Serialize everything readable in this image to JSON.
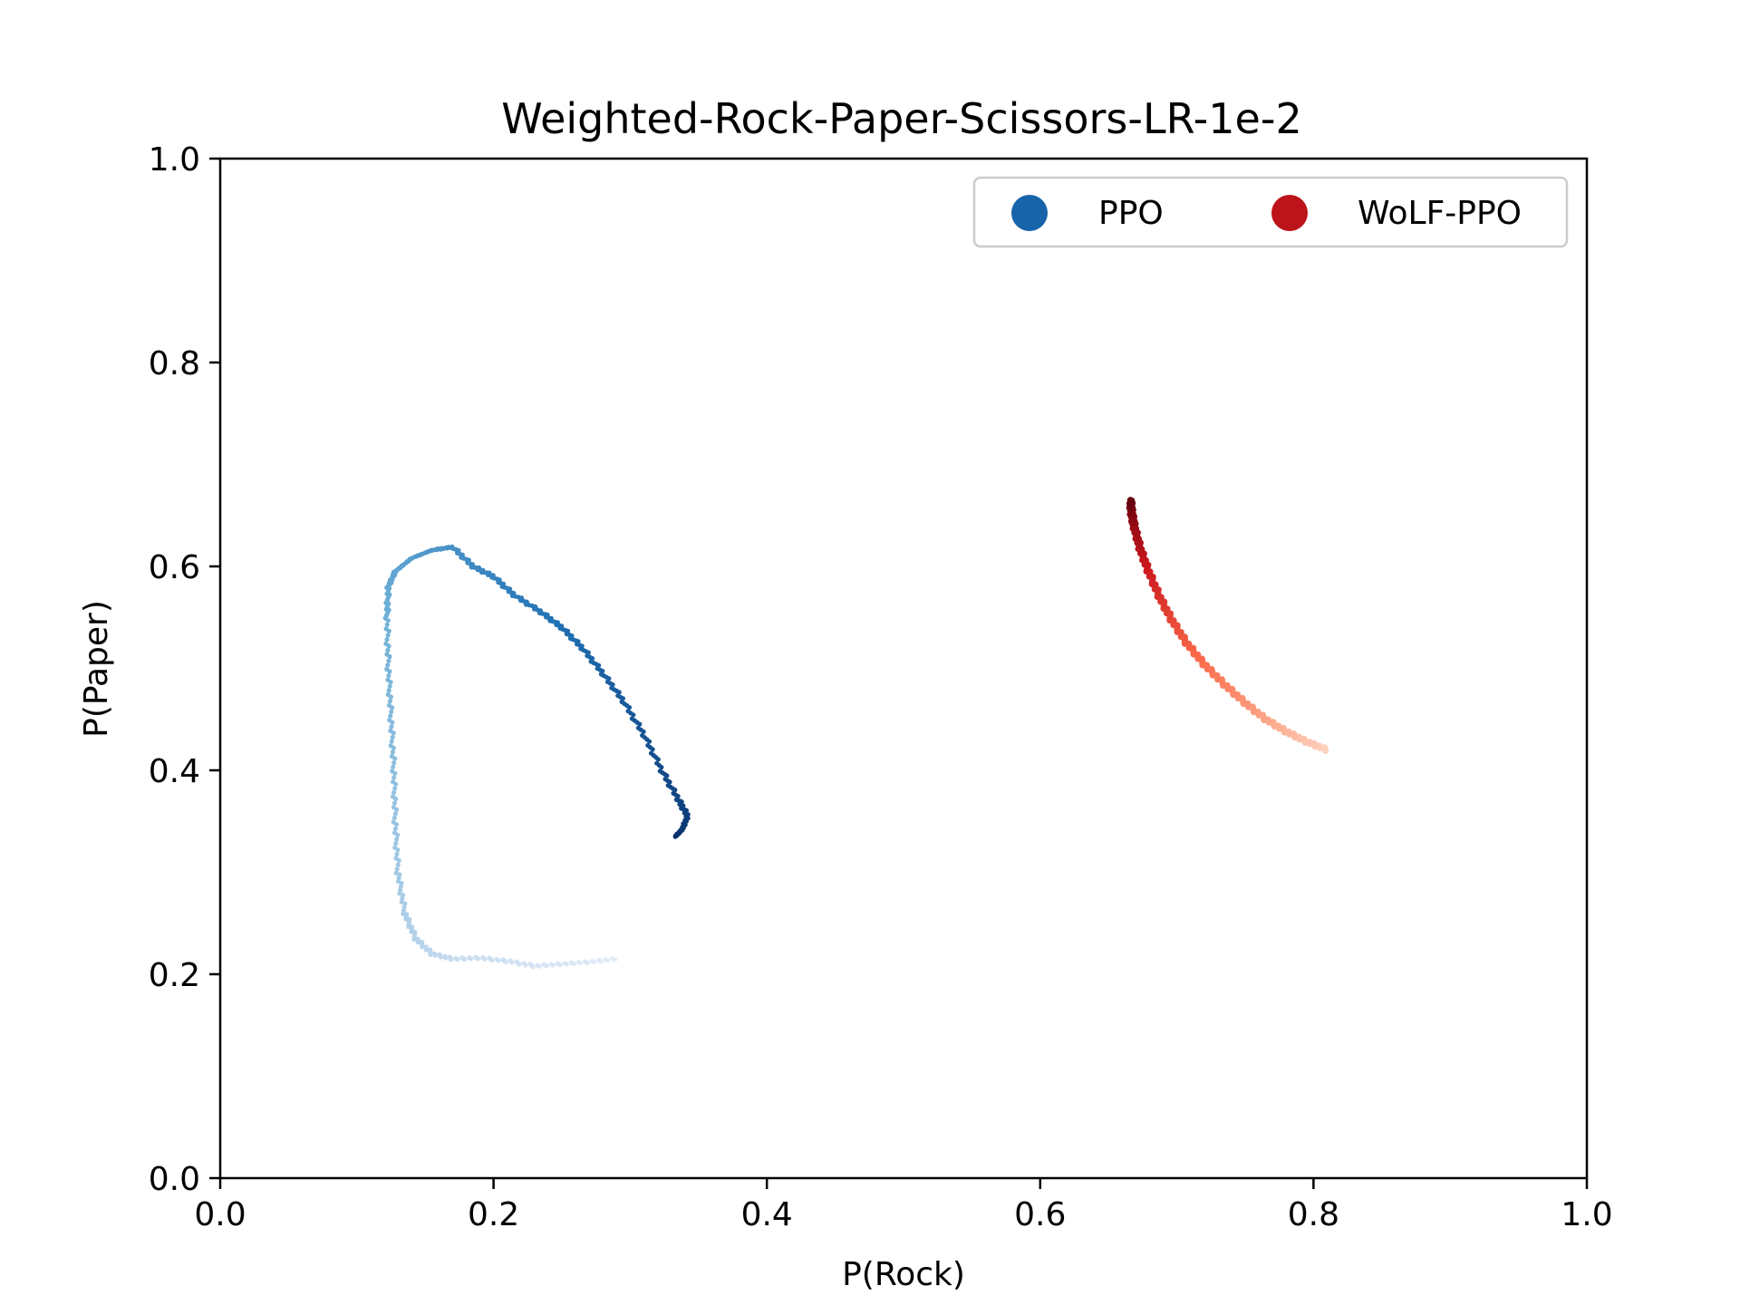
{
  "chart_data": {
    "type": "scatter",
    "title": "Weighted-Rock-Paper-Scissors-LR-1e-2",
    "xlabel": "P(Rock)",
    "ylabel": "P(Paper)",
    "xlim": [
      0.0,
      1.0
    ],
    "ylim": [
      0.0,
      1.0
    ],
    "xticks": [
      "0.0",
      "0.2",
      "0.4",
      "0.6",
      "0.8",
      "1.0"
    ],
    "yticks": [
      "0.0",
      "0.2",
      "0.4",
      "0.6",
      "0.8",
      "1.0"
    ],
    "grid": false,
    "legend": {
      "placement": "top-right",
      "columns": 2
    },
    "series": [
      {
        "name": "PPO",
        "color": "#1764ab",
        "colormap": "Blues",
        "points": [
          [
            0.29,
            0.215
          ],
          [
            0.27,
            0.212
          ],
          [
            0.25,
            0.21
          ],
          [
            0.23,
            0.208
          ],
          [
            0.21,
            0.213
          ],
          [
            0.19,
            0.216
          ],
          [
            0.17,
            0.215
          ],
          [
            0.155,
            0.22
          ],
          [
            0.143,
            0.235
          ],
          [
            0.135,
            0.26
          ],
          [
            0.13,
            0.3
          ],
          [
            0.128,
            0.35
          ],
          [
            0.127,
            0.4
          ],
          [
            0.125,
            0.45
          ],
          [
            0.123,
            0.5
          ],
          [
            0.122,
            0.55
          ],
          [
            0.123,
            0.58
          ],
          [
            0.128,
            0.595
          ],
          [
            0.14,
            0.608
          ],
          [
            0.155,
            0.616
          ],
          [
            0.17,
            0.619
          ],
          [
            0.185,
            0.6
          ],
          [
            0.2,
            0.59
          ],
          [
            0.215,
            0.572
          ],
          [
            0.235,
            0.555
          ],
          [
            0.25,
            0.54
          ],
          [
            0.265,
            0.52
          ],
          [
            0.28,
            0.495
          ],
          [
            0.295,
            0.468
          ],
          [
            0.31,
            0.435
          ],
          [
            0.323,
            0.4
          ],
          [
            0.335,
            0.372
          ],
          [
            0.342,
            0.355
          ],
          [
            0.338,
            0.342
          ],
          [
            0.333,
            0.335
          ]
        ]
      },
      {
        "name": "WoLF-PPO",
        "color": "#bc141a",
        "colormap": "Reds",
        "points": [
          [
            0.81,
            0.42
          ],
          [
            0.795,
            0.428
          ],
          [
            0.78,
            0.438
          ],
          [
            0.765,
            0.45
          ],
          [
            0.75,
            0.466
          ],
          [
            0.735,
            0.484
          ],
          [
            0.72,
            0.504
          ],
          [
            0.707,
            0.525
          ],
          [
            0.696,
            0.548
          ],
          [
            0.687,
            0.571
          ],
          [
            0.679,
            0.596
          ],
          [
            0.673,
            0.618
          ],
          [
            0.669,
            0.638
          ],
          [
            0.667,
            0.652
          ],
          [
            0.666,
            0.665
          ]
        ]
      }
    ]
  }
}
